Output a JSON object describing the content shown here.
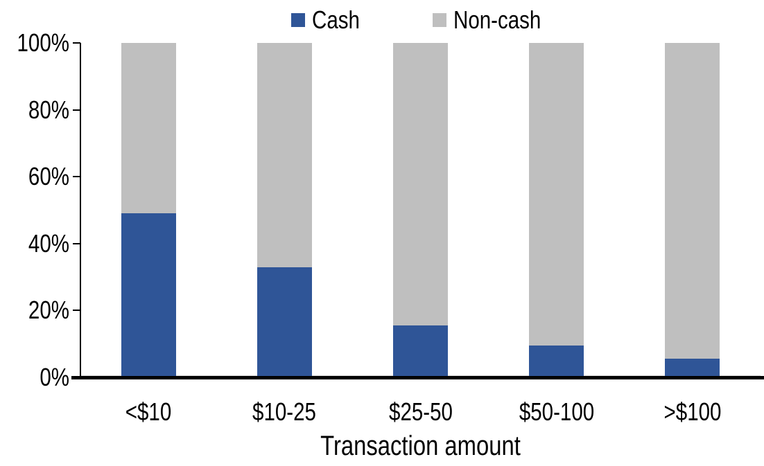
{
  "chart_data": {
    "type": "bar",
    "stacked": true,
    "orientation": "vertical",
    "title": "",
    "xlabel": "Transaction amount",
    "ylabel": "",
    "categories": [
      "<$10",
      "$10-25",
      "$25-50",
      "$50-100",
      ">$100"
    ],
    "series": [
      {
        "name": "Cash",
        "color": "#2F5597",
        "values": [
          49,
          33,
          15.5,
          9.5,
          5.5
        ]
      },
      {
        "name": "Non-cash",
        "color": "#BFBFBF",
        "values": [
          51,
          67,
          84.5,
          90.5,
          94.5
        ]
      }
    ],
    "ylim": [
      0,
      100
    ],
    "yticks": [
      "0%",
      "20%",
      "40%",
      "60%",
      "80%",
      "100%"
    ],
    "ytick_values": [
      0,
      20,
      40,
      60,
      80,
      100
    ],
    "unit": "percent",
    "grid": false,
    "legend_position": "top-center",
    "axis_color": "#000000"
  }
}
